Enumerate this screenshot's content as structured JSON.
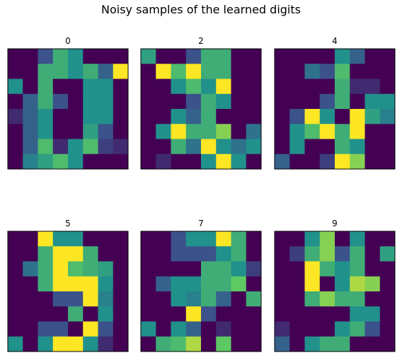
{
  "figure": {
    "title": "Noisy samples of the learned digits"
  },
  "colormap": {
    "name": "viridis",
    "stops": [
      "#440154",
      "#3b528b",
      "#21918c",
      "#5ec962",
      "#fde725"
    ]
  },
  "chart_data": {
    "type": "heatmap",
    "title": "Noisy samples of the learned digits",
    "value_range": [
      0,
      16
    ],
    "grid": false,
    "panels": [
      {
        "title": "0",
        "values": [
          [
            0,
            0,
            4,
            10,
            8,
            0,
            0,
            0
          ],
          [
            0,
            0,
            10,
            10,
            8,
            10,
            5,
            16
          ],
          [
            8,
            0,
            10,
            0,
            0,
            8,
            8,
            0
          ],
          [
            0,
            5,
            10,
            4,
            0,
            8,
            8,
            0
          ],
          [
            2,
            5,
            8,
            0,
            0,
            8,
            8,
            0
          ],
          [
            0,
            5,
            8,
            0,
            0,
            9,
            4,
            0
          ],
          [
            0,
            5,
            11,
            2,
            8,
            11,
            3,
            2
          ],
          [
            0,
            7,
            9,
            11,
            8,
            0,
            0,
            0
          ]
        ]
      },
      {
        "title": "2",
        "values": [
          [
            9,
            0,
            0,
            4,
            10,
            10,
            0,
            0
          ],
          [
            0,
            16,
            11,
            16,
            10,
            10,
            0,
            0
          ],
          [
            0,
            0,
            8,
            11,
            8,
            16,
            0,
            0
          ],
          [
            0,
            0,
            0,
            4,
            10,
            8,
            0,
            0
          ],
          [
            0,
            0,
            8,
            5,
            10,
            0,
            0,
            0
          ],
          [
            0,
            8,
            16,
            10,
            10,
            13,
            0,
            6
          ],
          [
            0,
            0,
            10,
            6,
            16,
            8,
            6,
            8
          ],
          [
            0,
            2,
            0,
            0,
            8,
            16,
            8,
            0
          ]
        ]
      },
      {
        "title": "4",
        "values": [
          [
            0,
            0,
            0,
            0,
            8,
            5,
            0,
            0
          ],
          [
            0,
            0,
            6,
            4,
            11,
            0,
            0,
            0
          ],
          [
            0,
            0,
            0,
            0,
            10,
            2,
            2,
            0
          ],
          [
            0,
            0,
            0,
            4,
            10,
            0,
            8,
            8
          ],
          [
            0,
            4,
            16,
            8,
            0,
            16,
            9,
            7
          ],
          [
            0,
            8,
            11,
            16,
            10,
            16,
            0,
            0
          ],
          [
            0,
            8,
            0,
            0,
            10,
            8,
            0,
            0
          ],
          [
            5,
            0,
            0,
            3,
            16,
            13,
            0,
            0
          ]
        ]
      },
      {
        "title": "5",
        "values": [
          [
            0,
            0,
            16,
            8,
            8,
            0,
            0,
            0
          ],
          [
            0,
            0,
            10,
            16,
            16,
            10,
            0,
            0
          ],
          [
            0,
            6,
            10,
            16,
            11,
            10,
            9,
            0
          ],
          [
            0,
            0,
            10,
            16,
            16,
            16,
            8,
            0
          ],
          [
            0,
            0,
            0,
            4,
            4,
            16,
            7,
            0
          ],
          [
            0,
            0,
            0,
            0,
            10,
            0,
            8,
            0
          ],
          [
            0,
            0,
            4,
            4,
            0,
            16,
            4,
            0
          ],
          [
            8,
            0,
            8,
            16,
            16,
            8,
            2,
            0
          ]
        ]
      },
      {
        "title": "7",
        "values": [
          [
            0,
            0,
            4,
            8,
            8,
            16,
            10,
            0
          ],
          [
            0,
            0,
            4,
            4,
            4,
            8,
            10,
            0
          ],
          [
            0,
            0,
            0,
            0,
            10,
            10,
            8,
            3
          ],
          [
            0,
            5,
            8,
            8,
            10,
            10,
            12,
            0
          ],
          [
            0,
            0,
            8,
            7,
            10,
            5,
            0,
            10
          ],
          [
            0,
            0,
            0,
            16,
            4,
            0,
            0,
            0
          ],
          [
            8,
            0,
            8,
            5,
            0,
            2,
            0,
            0
          ],
          [
            0,
            10,
            11,
            14,
            0,
            12,
            0,
            0
          ]
        ]
      },
      {
        "title": "9",
        "values": [
          [
            0,
            0,
            8,
            13,
            0,
            8,
            0,
            0
          ],
          [
            0,
            3,
            10,
            13,
            4,
            10,
            0,
            9
          ],
          [
            0,
            0,
            16,
            10,
            8,
            10,
            0,
            0
          ],
          [
            0,
            0,
            16,
            0,
            8,
            14,
            13,
            0
          ],
          [
            0,
            0,
            10,
            13,
            10,
            10,
            0,
            0
          ],
          [
            0,
            0,
            0,
            0,
            0,
            8,
            8,
            0
          ],
          [
            2,
            0,
            0,
            0,
            8,
            10,
            4,
            0
          ],
          [
            5,
            0,
            8,
            10,
            10,
            0,
            0,
            0
          ]
        ]
      }
    ]
  }
}
